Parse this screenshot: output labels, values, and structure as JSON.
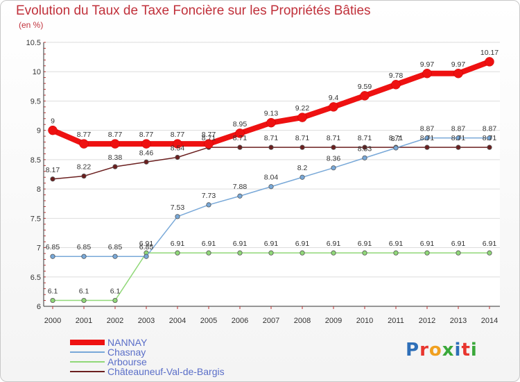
{
  "title": "Evolution du Taux de Taxe Foncière sur les Propriétés Bâties",
  "subtitle": "(en %)",
  "logo": {
    "text": "Proxiti",
    "colors": [
      "#2e6fb8",
      "#e8352e",
      "#f0a020",
      "#3aa83a",
      "#2e6fb8",
      "#e8352e",
      "#3aa83a"
    ]
  },
  "chart_data": {
    "type": "line",
    "title": "Evolution du Taux de Taxe Foncière sur les Propriétés Bâties",
    "ylabel": "(en %)",
    "xlabel": "",
    "x": [
      "2000",
      "2001",
      "2002",
      "2003",
      "2004",
      "2005",
      "2006",
      "2007",
      "2008",
      "2009",
      "2010",
      "2011",
      "2012",
      "2013",
      "2014"
    ],
    "ylim": [
      6,
      10.5
    ],
    "yticks": [
      "6",
      "6.5",
      "7",
      "7.5",
      "8",
      "8.5",
      "9",
      "9.5",
      "10",
      "10.5"
    ],
    "ytick_values": [
      6,
      6.5,
      7,
      7.5,
      8,
      8.5,
      9,
      9.5,
      10,
      10.5
    ],
    "legend_position": "bottom-left",
    "series": [
      {
        "name": "Châteauneuf-Val-de-Bargis",
        "color": "#6b1f1f",
        "values": [
          8.17,
          8.22,
          8.38,
          8.46,
          8.54,
          8.71,
          8.71,
          8.71,
          8.71,
          8.71,
          8.71,
          8.71,
          8.71,
          8.71,
          8.71
        ],
        "labels": [
          "8.17",
          "8.22",
          "8.38",
          "8.46",
          "8.54",
          "8.71",
          "8.71",
          "8.71",
          "8.71",
          "8.71",
          "8.71",
          "8.71",
          "8.71",
          "8.71",
          "8.71"
        ]
      },
      {
        "name": "Arbourse",
        "color": "#90d878",
        "values": [
          6.1,
          6.1,
          6.1,
          6.91,
          6.91,
          6.91,
          6.91,
          6.91,
          6.91,
          6.91,
          6.91,
          6.91,
          6.91,
          6.91,
          6.91
        ],
        "labels": [
          "6.1",
          "6.1",
          "6.1",
          "6.91",
          "6.91",
          "6.91",
          "6.91",
          "6.91",
          "6.91",
          "6.91",
          "6.91",
          "6.91",
          "6.91",
          "6.91",
          "6.91"
        ]
      },
      {
        "name": "Chasnay",
        "color": "#78a8d8",
        "values": [
          6.85,
          6.85,
          6.85,
          6.85,
          7.53,
          7.73,
          7.88,
          8.04,
          8.2,
          8.36,
          8.53,
          8.7,
          8.87,
          8.87,
          8.87
        ],
        "labels": [
          "6.85",
          "6.85",
          "6.85",
          "6.85",
          "7.53",
          "7.73",
          "7.88",
          "8.04",
          "8.2",
          "8.36",
          "8.53",
          "8.7",
          "8.87",
          "8.87",
          "8.87"
        ]
      },
      {
        "name": "NANNAY",
        "color": "#ee1111",
        "values": [
          9,
          8.77,
          8.77,
          8.77,
          8.77,
          8.77,
          8.95,
          9.13,
          9.22,
          9.4,
          9.59,
          9.78,
          9.97,
          9.97,
          10.17
        ],
        "labels": [
          "9",
          "8.77",
          "8.77",
          "8.77",
          "8.77",
          "8.77",
          "8.95",
          "9.13",
          "9.22",
          "9.4",
          "9.59",
          "9.78",
          "9.97",
          "9.97",
          "10.17"
        ]
      }
    ],
    "legend": [
      "NANNAY",
      "Chasnay",
      "Arbourse",
      "Châteauneuf-Val-de-Bargis"
    ]
  }
}
